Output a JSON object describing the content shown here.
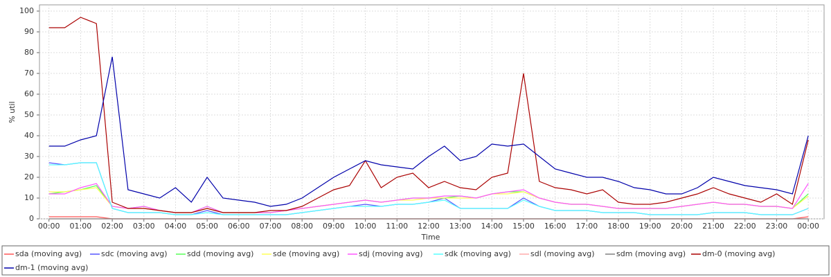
{
  "chart_data": {
    "type": "line",
    "x_label": "Time",
    "y_label": "% util",
    "x": [
      0,
      0.5,
      1,
      1.5,
      2,
      2.5,
      3,
      3.5,
      4,
      4.5,
      5,
      5.5,
      6,
      6.5,
      7,
      7.5,
      8,
      8.5,
      9,
      9.5,
      10,
      10.5,
      11,
      11.5,
      12,
      12.5,
      13,
      13.5,
      14,
      14.5,
      15,
      15.5,
      16,
      16.5,
      17,
      17.5,
      18,
      18.5,
      19,
      19.5,
      20,
      20.5,
      21,
      21.5,
      22,
      22.5,
      23,
      23.5,
      24
    ],
    "xlim": [
      -0.3,
      24.5
    ],
    "xticks": [
      {
        "value": 0,
        "label": "00:00"
      },
      {
        "value": 1,
        "label": "01:00"
      },
      {
        "value": 2,
        "label": "02:00"
      },
      {
        "value": 3,
        "label": "03:00"
      },
      {
        "value": 4,
        "label": "04:00"
      },
      {
        "value": 5,
        "label": "05:00"
      },
      {
        "value": 6,
        "label": "06:00"
      },
      {
        "value": 7,
        "label": "07:00"
      },
      {
        "value": 8,
        "label": "08:00"
      },
      {
        "value": 9,
        "label": "09:00"
      },
      {
        "value": 10,
        "label": "10:00"
      },
      {
        "value": 11,
        "label": "11:00"
      },
      {
        "value": 12,
        "label": "12:00"
      },
      {
        "value": 13,
        "label": "13:00"
      },
      {
        "value": 14,
        "label": "14:00"
      },
      {
        "value": 15,
        "label": "15:00"
      },
      {
        "value": 16,
        "label": "16:00"
      },
      {
        "value": 17,
        "label": "17:00"
      },
      {
        "value": 18,
        "label": "18:00"
      },
      {
        "value": 19,
        "label": "19:00"
      },
      {
        "value": 20,
        "label": "20:00"
      },
      {
        "value": 21,
        "label": "21:00"
      },
      {
        "value": 22,
        "label": "22:00"
      },
      {
        "value": 23,
        "label": "23:00"
      },
      {
        "value": 24,
        "label": "00:00"
      }
    ],
    "ylim": [
      0,
      103
    ],
    "yticks": [
      0,
      10,
      20,
      30,
      40,
      50,
      60,
      70,
      80,
      90,
      100
    ],
    "grid": true,
    "series": [
      {
        "name": "sda (moving avg)",
        "color": "#ff5555",
        "values": [
          1,
          1,
          1,
          1,
          0,
          0,
          0,
          0,
          0,
          0,
          0,
          0,
          0,
          0,
          0,
          0,
          0,
          0,
          0,
          0,
          0,
          0,
          0,
          0,
          0,
          0,
          0,
          0,
          0,
          0,
          0,
          0,
          0,
          0,
          0,
          0,
          0,
          0,
          0,
          0,
          0,
          0,
          0,
          0,
          0,
          0,
          0,
          0,
          1
        ]
      },
      {
        "name": "sdc (moving avg)",
        "color": "#5555ff",
        "values": [
          27,
          26,
          27,
          27,
          5,
          3,
          3,
          3,
          2,
          2,
          4,
          2,
          2,
          2,
          2,
          2,
          3,
          4,
          5,
          6,
          7,
          6,
          7,
          7,
          8,
          10,
          5,
          5,
          5,
          5,
          10,
          6,
          4,
          4,
          4,
          3,
          3,
          3,
          2,
          2,
          2,
          2,
          3,
          3,
          3,
          2,
          2,
          2,
          5
        ]
      },
      {
        "name": "sdd (moving avg)",
        "color": "#55ff55",
        "values": [
          12,
          13,
          14,
          16,
          6,
          5,
          6,
          4,
          3,
          3,
          6,
          3,
          3,
          3,
          3,
          4,
          5,
          6,
          7,
          8,
          9,
          8,
          9,
          10,
          10,
          10,
          11,
          10,
          12,
          13,
          13,
          10,
          8,
          7,
          7,
          6,
          5,
          5,
          5,
          5,
          6,
          7,
          8,
          7,
          7,
          6,
          6,
          5,
          12
        ]
      },
      {
        "name": "sde (moving avg)",
        "color": "#ffff55",
        "values": [
          13,
          13,
          14,
          15,
          6,
          5,
          5,
          4,
          3,
          3,
          5,
          3,
          3,
          3,
          3,
          4,
          5,
          6,
          7,
          8,
          9,
          8,
          9,
          9,
          10,
          10,
          10,
          10,
          12,
          12,
          13,
          10,
          8,
          7,
          7,
          6,
          5,
          5,
          5,
          5,
          6,
          7,
          8,
          7,
          7,
          6,
          6,
          5,
          11
        ]
      },
      {
        "name": "sdj (moving avg)",
        "color": "#ff55ff",
        "values": [
          12,
          12,
          15,
          17,
          6,
          5,
          6,
          4,
          3,
          3,
          6,
          3,
          3,
          3,
          3,
          4,
          5,
          6,
          7,
          8,
          9,
          8,
          9,
          10,
          10,
          11,
          11,
          10,
          12,
          13,
          14,
          10,
          8,
          7,
          7,
          6,
          5,
          5,
          5,
          5,
          6,
          7,
          8,
          7,
          7,
          6,
          6,
          5,
          17
        ]
      },
      {
        "name": "sdk (moving avg)",
        "color": "#55ffff",
        "values": [
          26,
          26,
          27,
          27,
          5,
          3,
          3,
          3,
          2,
          2,
          3,
          2,
          2,
          2,
          2,
          2,
          3,
          4,
          5,
          6,
          6,
          6,
          7,
          7,
          8,
          9,
          5,
          5,
          5,
          5,
          9,
          6,
          4,
          4,
          4,
          3,
          3,
          3,
          2,
          2,
          2,
          2,
          3,
          3,
          3,
          2,
          2,
          2,
          5
        ]
      },
      {
        "name": "sdl (moving avg)",
        "color": "#ffaaaa",
        "values": [
          0,
          0,
          0,
          0,
          0,
          0,
          0,
          0,
          0,
          0,
          0,
          0,
          0,
          0,
          0,
          0,
          0,
          0,
          0,
          0,
          0,
          0,
          0,
          0,
          0,
          0,
          0,
          0,
          0,
          0,
          0,
          0,
          0,
          0,
          0,
          0,
          0,
          0,
          0,
          0,
          0,
          0,
          0,
          0,
          0,
          0,
          0,
          0,
          0
        ]
      },
      {
        "name": "sdm (moving avg)",
        "color": "#808080",
        "values": [
          0,
          0,
          0,
          0,
          0,
          0,
          0,
          0,
          0,
          0,
          0,
          0,
          0,
          0,
          0,
          0,
          0,
          0,
          0,
          0,
          0,
          0,
          0,
          0,
          0,
          0,
          0,
          0,
          0,
          0,
          0,
          0,
          0,
          0,
          0,
          0,
          0,
          0,
          0,
          0,
          0,
          0,
          0,
          0,
          0,
          0,
          0,
          0,
          0
        ]
      },
      {
        "name": "dm-0 (moving avg)",
        "color": "#aa0000",
        "values": [
          92,
          92,
          97,
          94,
          8,
          5,
          5,
          4,
          3,
          3,
          5,
          3,
          3,
          3,
          4,
          4,
          6,
          10,
          14,
          16,
          28,
          15,
          20,
          22,
          15,
          18,
          15,
          14,
          20,
          22,
          70,
          18,
          15,
          14,
          12,
          14,
          8,
          7,
          7,
          8,
          10,
          12,
          15,
          12,
          10,
          8,
          12,
          7,
          38
        ]
      },
      {
        "name": "dm-1 (moving avg)",
        "color": "#0000aa",
        "values": [
          35,
          35,
          38,
          40,
          78,
          14,
          12,
          10,
          15,
          8,
          20,
          10,
          9,
          8,
          6,
          7,
          10,
          15,
          20,
          24,
          28,
          26,
          25,
          24,
          30,
          35,
          28,
          30,
          36,
          35,
          36,
          30,
          24,
          22,
          20,
          20,
          18,
          15,
          14,
          12,
          12,
          15,
          20,
          18,
          16,
          15,
          14,
          12,
          40
        ]
      }
    ]
  }
}
